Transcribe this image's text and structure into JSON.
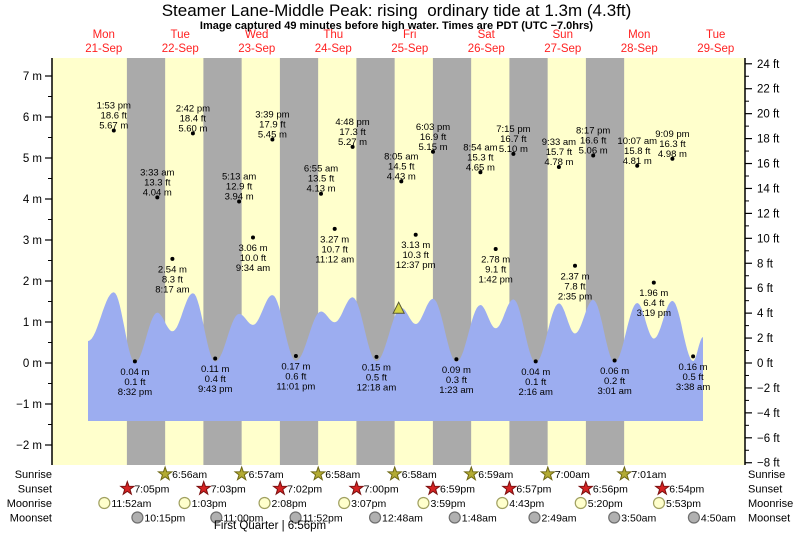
{
  "title": "Steamer Lane-Middle Peak: rising  ordinary tide at 1.3m (4.3ft)",
  "subtitle": "Image captured 49 minutes before high water. Times are PDT (UTC −7.0hrs)",
  "days": [
    {
      "weekday": "Mon",
      "date": "21-Sep"
    },
    {
      "weekday": "Tue",
      "date": "22-Sep"
    },
    {
      "weekday": "Wed",
      "date": "23-Sep"
    },
    {
      "weekday": "Thu",
      "date": "24-Sep"
    },
    {
      "weekday": "Fri",
      "date": "25-Sep"
    },
    {
      "weekday": "Sat",
      "date": "26-Sep"
    },
    {
      "weekday": "Sun",
      "date": "27-Sep"
    },
    {
      "weekday": "Mon",
      "date": "28-Sep"
    },
    {
      "weekday": "Tue",
      "date": "29-Sep"
    }
  ],
  "chart_data": {
    "type": "area",
    "title": "Steamer Lane-Middle Peak tide curve",
    "y_axis_left": {
      "unit": "m",
      "ticks": [
        7,
        6,
        5,
        4,
        3,
        2,
        1,
        0,
        -1,
        -2
      ]
    },
    "y_axis_right": {
      "unit": "ft",
      "ticks": [
        24,
        22,
        20,
        18,
        16,
        14,
        12,
        10,
        8,
        6,
        4,
        2,
        0,
        -2,
        -4,
        -6,
        -8
      ]
    },
    "tide_events": [
      {
        "day": 0,
        "time": "1:53 pm",
        "ft": "18.6 ft",
        "m": "5.67 m",
        "type": "high"
      },
      {
        "day": 0,
        "time": "8:32 pm",
        "ft": "0.1 ft",
        "m": "0.04 m",
        "type": "low"
      },
      {
        "day": 1,
        "time": "3:33 am",
        "ft": "13.3 ft",
        "m": "4.04 m",
        "type": "high"
      },
      {
        "day": 1,
        "time": "8:17 am",
        "ft": "8.3 ft",
        "m": "2.54 m",
        "type": "low"
      },
      {
        "day": 1,
        "time": "2:42 pm",
        "ft": "18.4 ft",
        "m": "5.60 m",
        "type": "high"
      },
      {
        "day": 1,
        "time": "9:43 pm",
        "ft": "0.4 ft",
        "m": "0.11 m",
        "type": "low"
      },
      {
        "day": 2,
        "time": "5:13 am",
        "ft": "12.9 ft",
        "m": "3.94 m",
        "type": "high"
      },
      {
        "day": 2,
        "time": "9:34 am",
        "ft": "10.0 ft",
        "m": "3.06 m",
        "type": "low"
      },
      {
        "day": 2,
        "time": "3:39 pm",
        "ft": "17.9 ft",
        "m": "5.45 m",
        "type": "high"
      },
      {
        "day": 2,
        "time": "11:01 pm",
        "ft": "0.6 ft",
        "m": "0.17 m",
        "type": "low"
      },
      {
        "day": 3,
        "time": "6:55 am",
        "ft": "13.5 ft",
        "m": "4.13 m",
        "type": "high"
      },
      {
        "day": 3,
        "time": "11:12 am",
        "ft": "10.7 ft",
        "m": "3.27 m",
        "type": "low"
      },
      {
        "day": 3,
        "time": "4:48 pm",
        "ft": "17.3 ft",
        "m": "5.27 m",
        "type": "high"
      },
      {
        "day": 4,
        "time": "12:18 am",
        "ft": "0.5 ft",
        "m": "0.15 m",
        "type": "low"
      },
      {
        "day": 4,
        "time": "8:05 am",
        "ft": "14.5 ft",
        "m": "4.43 m",
        "type": "high"
      },
      {
        "day": 4,
        "time": "12:37 pm",
        "ft": "10.3 ft",
        "m": "3.13 m",
        "type": "low"
      },
      {
        "day": 4,
        "time": "6:03 pm",
        "ft": "16.9 ft",
        "m": "5.15 m",
        "type": "high"
      },
      {
        "day": 5,
        "time": "1:23 am",
        "ft": "0.3 ft",
        "m": "0.09 m",
        "type": "low"
      },
      {
        "day": 5,
        "time": "8:54 am",
        "ft": "15.3 ft",
        "m": "4.65 m",
        "type": "high"
      },
      {
        "day": 5,
        "time": "1:42 pm",
        "ft": "9.1 ft",
        "m": "2.78 m",
        "type": "low"
      },
      {
        "day": 5,
        "time": "7:15 pm",
        "ft": "16.7 ft",
        "m": "5.10 m",
        "type": "high"
      },
      {
        "day": 6,
        "time": "2:16 am",
        "ft": "0.1 ft",
        "m": "0.04 m",
        "type": "low"
      },
      {
        "day": 6,
        "time": "9:33 am",
        "ft": "15.7 ft",
        "m": "4.78 m",
        "type": "high"
      },
      {
        "day": 6,
        "time": "2:35 pm",
        "ft": "7.8 ft",
        "m": "2.37 m",
        "type": "low"
      },
      {
        "day": 6,
        "time": "8:17 pm",
        "ft": "16.6 ft",
        "m": "5.06 m",
        "type": "high"
      },
      {
        "day": 7,
        "time": "3:01 am",
        "ft": "0.2 ft",
        "m": "0.06 m",
        "type": "low"
      },
      {
        "day": 7,
        "time": "10:07 am",
        "ft": "15.8 ft",
        "m": "4.81 m",
        "type": "high"
      },
      {
        "day": 7,
        "time": "3:19 pm",
        "ft": "6.4 ft",
        "m": "1.96 m",
        "type": "low"
      },
      {
        "day": 7,
        "time": "9:09 pm",
        "ft": "16.3 ft",
        "m": "4.98 m",
        "type": "high"
      },
      {
        "day": 8,
        "time": "3:38 am",
        "ft": "0.5 ft",
        "m": "0.16 m",
        "type": "low"
      }
    ],
    "marker": {
      "day": 4,
      "time": "7:16 am",
      "value_m": 1.3
    },
    "curve_edges": {
      "start_m": 1.76,
      "end_m": 2.08
    },
    "colors": {
      "day_band": "#ffffcc",
      "night_band": "#aaaaaa",
      "tide_fill": "#9cadf0",
      "date_label": "#ff2222",
      "sunrise_star": "#b3ab33",
      "sunrise_star_edge": "#6e6814",
      "sunset_star": "#d42222",
      "sunset_star_edge": "#7a1010",
      "moonrise_circle": "#ffffcc",
      "moonrise_circle_edge": "#a0a060",
      "moonset_circle": "#b0b0b0",
      "moonset_circle_edge": "#6f6f6f",
      "marker_fill": "#d6d647",
      "marker_edge": "#555533"
    }
  },
  "astro": {
    "rows": [
      {
        "label": "Sunrise",
        "icon": "sunrise-star",
        "events": [
          {
            "day": 1,
            "time": "6:56am"
          },
          {
            "day": 2,
            "time": "6:57am"
          },
          {
            "day": 3,
            "time": "6:58am"
          },
          {
            "day": 4,
            "time": "6:58am"
          },
          {
            "day": 5,
            "time": "6:59am"
          },
          {
            "day": 6,
            "time": "7:00am"
          },
          {
            "day": 7,
            "time": "7:01am"
          }
        ]
      },
      {
        "label": "Sunset",
        "icon": "sunset-star",
        "events": [
          {
            "day": 0,
            "time": "7:05pm"
          },
          {
            "day": 1,
            "time": "7:03pm"
          },
          {
            "day": 2,
            "time": "7:02pm"
          },
          {
            "day": 3,
            "time": "7:00pm"
          },
          {
            "day": 4,
            "time": "6:59pm"
          },
          {
            "day": 5,
            "time": "6:57pm"
          },
          {
            "day": 6,
            "time": "6:56pm"
          },
          {
            "day": 7,
            "time": "6:54pm"
          }
        ]
      },
      {
        "label": "Moonrise",
        "icon": "moonrise-circle",
        "events": [
          {
            "day": 0,
            "time": "11:52am"
          },
          {
            "day": 1,
            "time": "1:03pm"
          },
          {
            "day": 2,
            "time": "2:08pm"
          },
          {
            "day": 3,
            "time": "3:07pm"
          },
          {
            "day": 4,
            "time": "3:59pm"
          },
          {
            "day": 5,
            "time": "4:43pm"
          },
          {
            "day": 6,
            "time": "5:20pm"
          },
          {
            "day": 7,
            "time": "5:53pm"
          }
        ]
      },
      {
        "label": "Moonset",
        "icon": "moonset-circle",
        "events": [
          {
            "day": 0,
            "time": "10:15pm"
          },
          {
            "day": 1,
            "time": "11:00pm"
          },
          {
            "day": 2,
            "time": "11:52pm"
          },
          {
            "day": 4,
            "time": "12:48am"
          },
          {
            "day": 5,
            "time": "1:48am"
          },
          {
            "day": 6,
            "time": "2:49am"
          },
          {
            "day": 7,
            "time": "3:50am"
          },
          {
            "day": 8,
            "time": "4:50am"
          }
        ]
      }
    ],
    "footer": "First Quarter | 6:56pm"
  }
}
